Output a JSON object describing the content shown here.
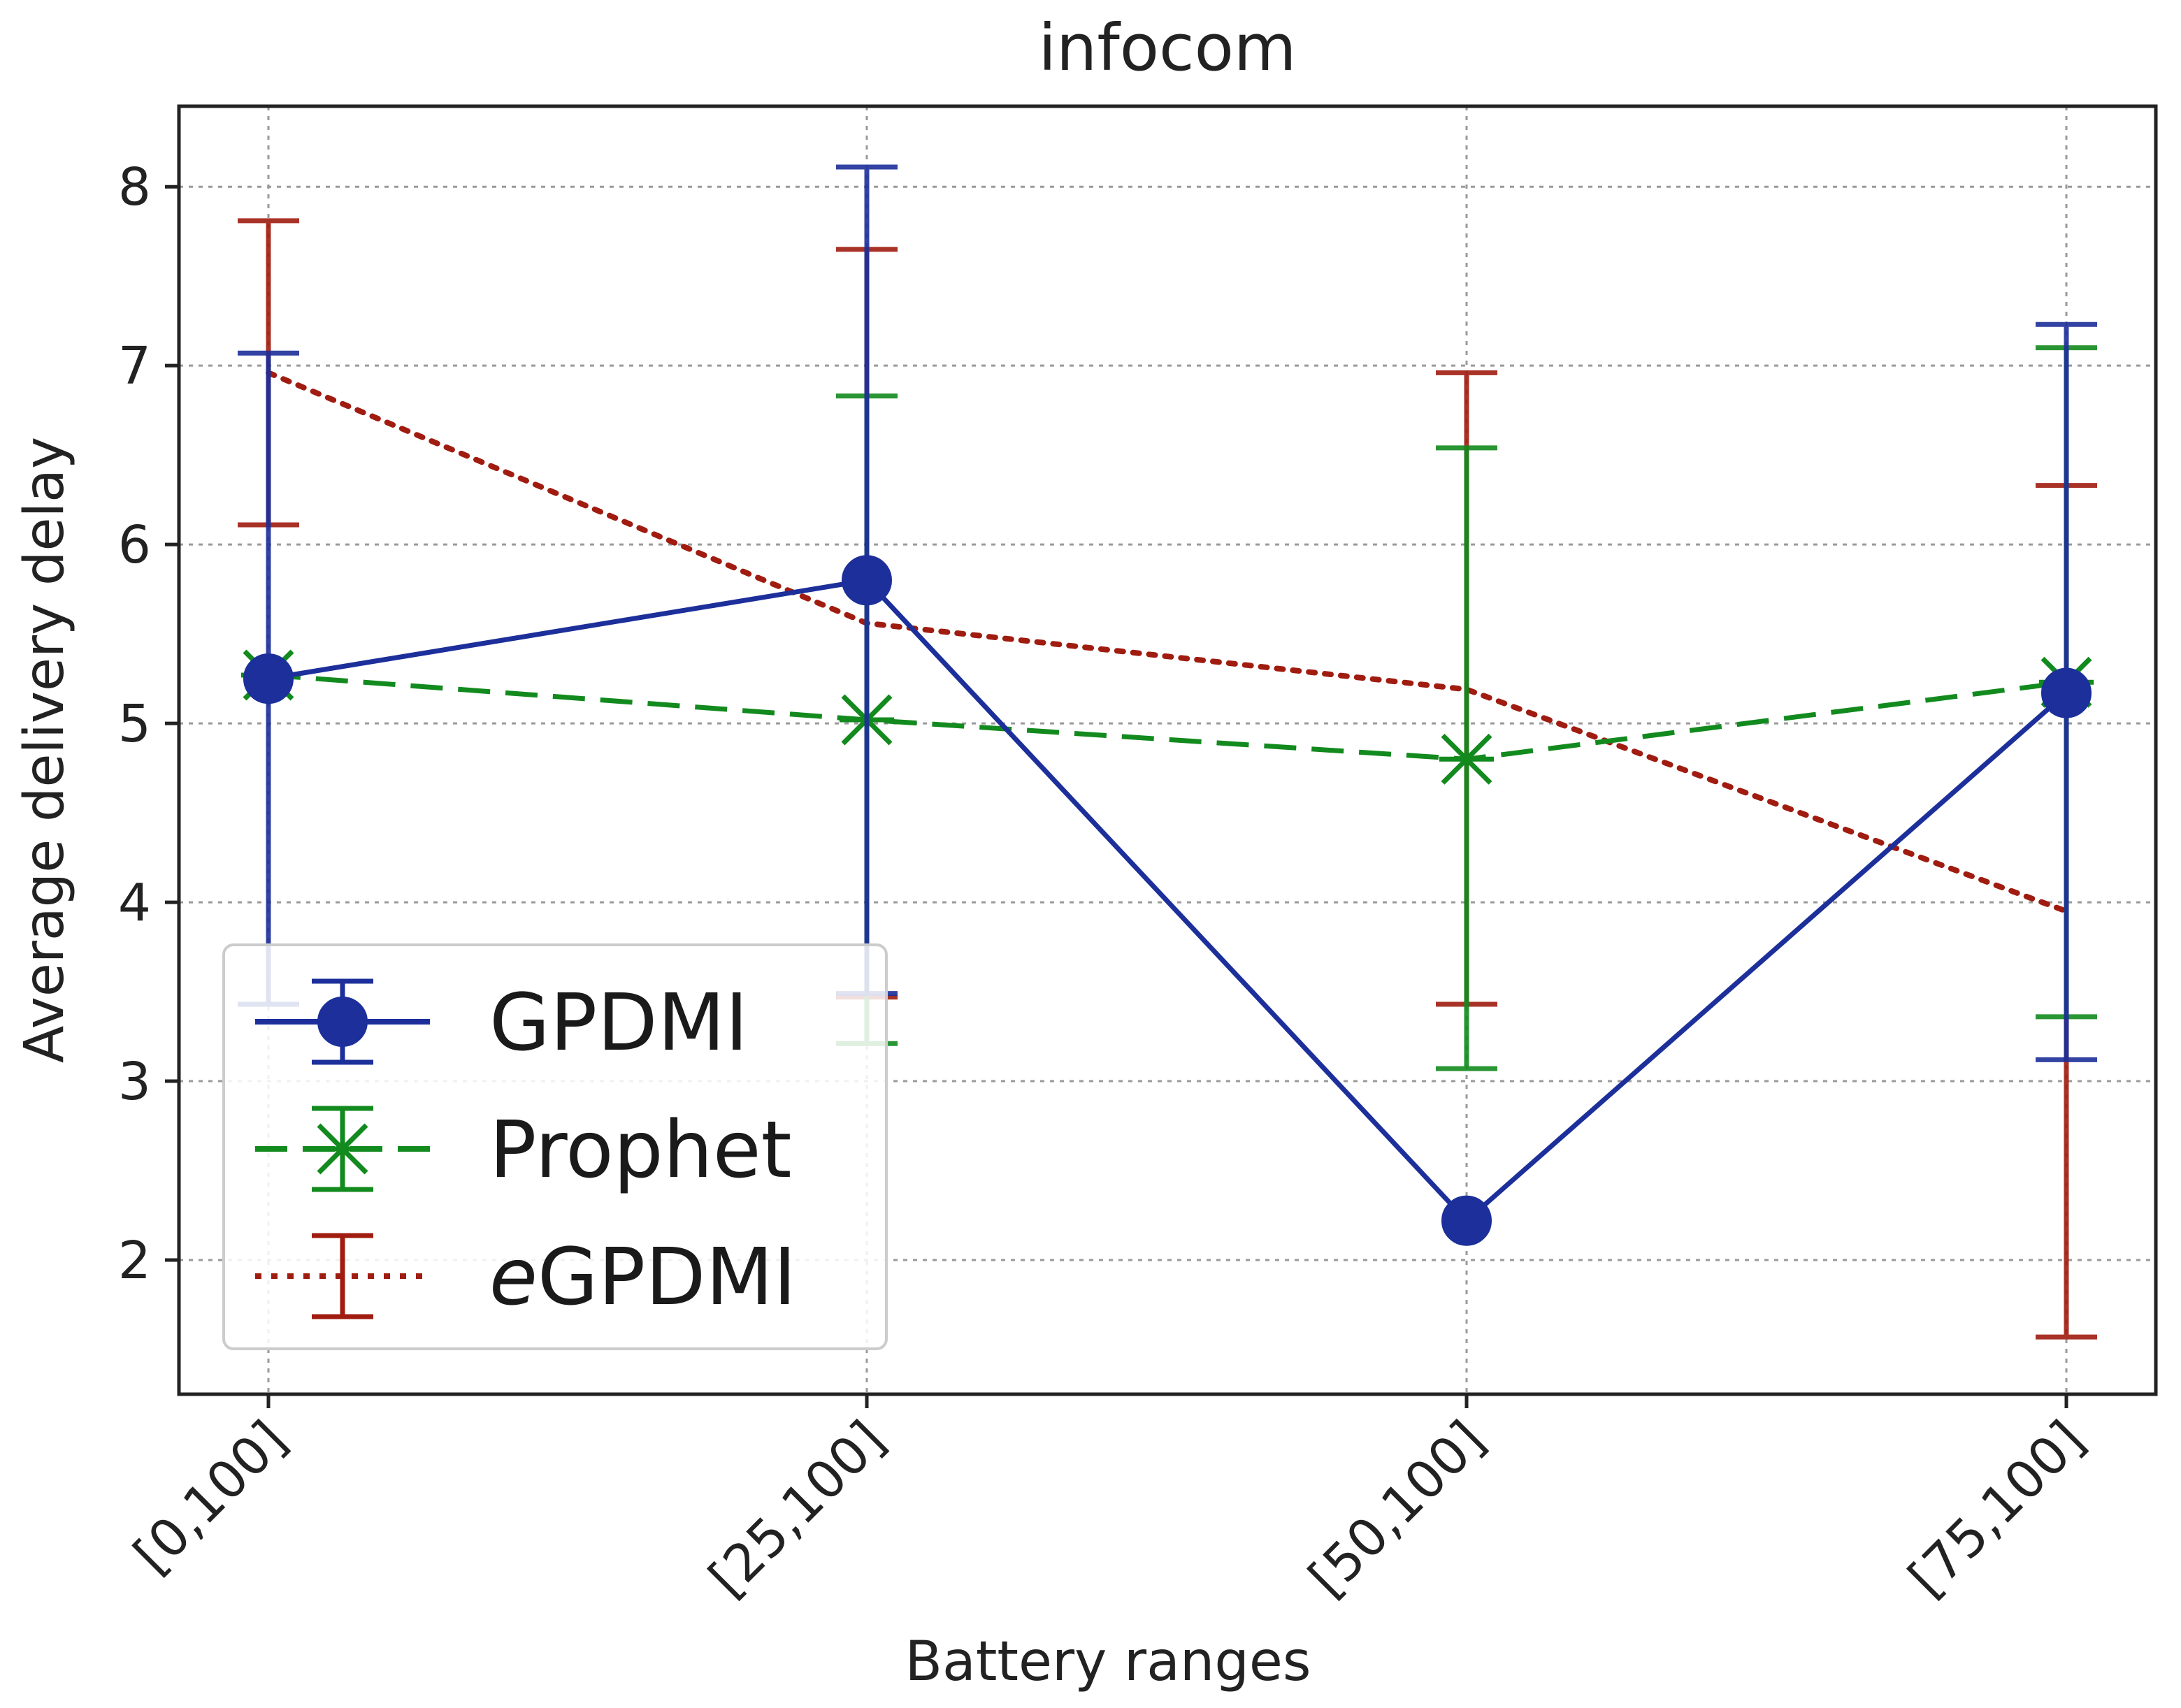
{
  "chart_data": {
    "type": "line",
    "title": "infocom",
    "xlabel": "Battery ranges",
    "ylabel": "Average delivery delay",
    "categories": [
      "[0,100]",
      "[25,100]",
      "[50,100]",
      "[75,100]"
    ],
    "ylim": [
      1.25,
      8.45
    ],
    "yticks": [
      2,
      3,
      4,
      5,
      6,
      7,
      8
    ],
    "grid": true,
    "legend_position": "lower-left",
    "series": [
      {
        "name": "GPDMI",
        "name_prefix": "",
        "name_main": "GPDMI",
        "color": "#1c2f9a",
        "line_style": "solid",
        "marker": "circle",
        "values": [
          5.25,
          5.8,
          2.22,
          5.17
        ],
        "err_low": [
          3.43,
          3.49,
          2.22,
          3.12
        ],
        "err_high": [
          7.07,
          8.11,
          2.22,
          7.23
        ]
      },
      {
        "name": "Prophet",
        "name_prefix": "",
        "name_main": "Prophet",
        "color": "#128a1e",
        "line_style": "dashed",
        "marker": "x-star",
        "values": [
          5.27,
          5.02,
          4.8,
          5.23
        ],
        "err_low": [
          5.27,
          3.21,
          3.07,
          3.36
        ],
        "err_high": [
          5.27,
          6.83,
          6.54,
          7.1
        ]
      },
      {
        "name": "eGPDMI",
        "name_prefix": "e",
        "name_main": "GPDMI",
        "color": "#a01c10",
        "line_style": "dotted",
        "marker": "none",
        "values": [
          6.96,
          5.56,
          5.19,
          3.95
        ],
        "err_low": [
          6.11,
          3.47,
          3.43,
          1.57
        ],
        "err_high": [
          7.81,
          7.65,
          6.96,
          6.33
        ]
      }
    ]
  }
}
